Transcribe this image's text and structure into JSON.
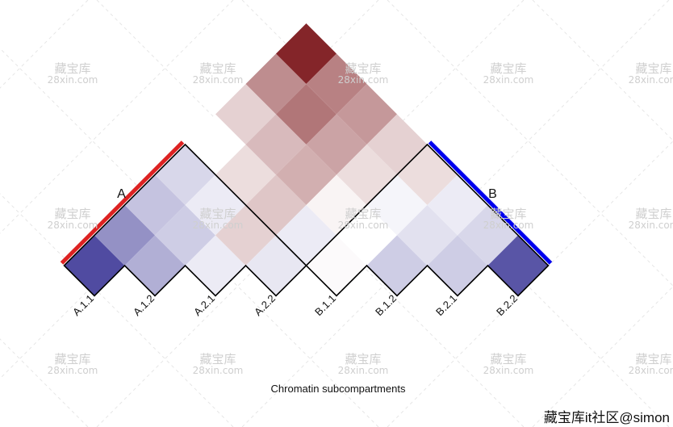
{
  "chart_data": {
    "type": "heatmap",
    "layout": "triangular (rotated 45 degrees)",
    "xlabel": "Chromatin subcompartments",
    "categories": [
      "A.1.1",
      "A.1.2",
      "A.2.1",
      "A.2.2",
      "B.1.1",
      "B.1.2",
      "B.2.1",
      "B.2.2"
    ],
    "groups": [
      {
        "name": "A",
        "color": "#dd2222",
        "members": [
          "A.1.1",
          "A.1.2",
          "A.2.1",
          "A.2.2"
        ]
      },
      {
        "name": "B",
        "color": "#0000ee",
        "members": [
          "B.1.1",
          "B.1.2",
          "B.2.1",
          "B.2.2"
        ]
      }
    ],
    "color_scale": {
      "low": "#3c3796",
      "mid": "#ffffff",
      "high": "#7d1a1e",
      "range": [
        -1,
        1
      ]
    },
    "values": [
      [
        -0.9,
        -0.55,
        -0.3,
        -0.2,
        0.0,
        0.2,
        0.5,
        0.95
      ],
      [
        -0.55,
        -0.4,
        -0.25,
        -0.1,
        0.15,
        0.3,
        0.6,
        0.55
      ],
      [
        -0.3,
        -0.25,
        -0.1,
        0.2,
        0.25,
        0.35,
        0.4,
        0.45
      ],
      [
        -0.2,
        -0.1,
        0.2,
        -0.12,
        -0.1,
        0.05,
        0.15,
        0.2
      ],
      [
        0.0,
        0.15,
        0.25,
        -0.1,
        0.02,
        0.0,
        -0.05,
        0.15
      ],
      [
        0.2,
        0.3,
        0.35,
        0.05,
        0.0,
        -0.25,
        -0.15,
        -0.1
      ],
      [
        0.5,
        0.6,
        0.4,
        0.15,
        -0.05,
        -0.15,
        -0.25,
        -0.2
      ],
      [
        0.95,
        0.55,
        0.45,
        0.2,
        0.15,
        -0.1,
        -0.2,
        -0.85
      ]
    ]
  },
  "watermarks": {
    "cn": "藏宝库",
    "url": "28xin.com",
    "footer": "藏宝库it社区@simon"
  }
}
